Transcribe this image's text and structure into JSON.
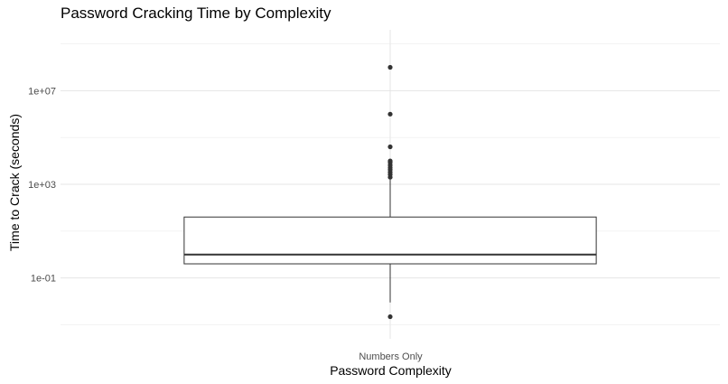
{
  "chart_data": {
    "type": "box",
    "title": "Password Cracking Time by Complexity",
    "xlabel": "Password Complexity",
    "ylabel": "Time to Crack (seconds)",
    "y_scale": "log10",
    "ylim": [
      0.00025,
      4000000000
    ],
    "y_ticks": [
      0.1,
      1000,
      10000000
    ],
    "y_tick_labels": [
      "1e-01",
      "1e+03",
      "1e+07"
    ],
    "y_minor_gridlines": [
      0.001,
      10,
      100000,
      1000000000
    ],
    "grid": true,
    "categories": [
      "Numbers Only"
    ],
    "boxes": [
      {
        "category": "Numbers Only",
        "whisker_low": 0.009,
        "q1": 0.4,
        "median": 1.0,
        "q3": 40,
        "whisker_high": 1600,
        "outliers": [
          0.0022,
          2000,
          2600,
          3300,
          4200,
          5200,
          6600,
          8500,
          10000,
          40000,
          1000000,
          100000000
        ]
      }
    ]
  }
}
